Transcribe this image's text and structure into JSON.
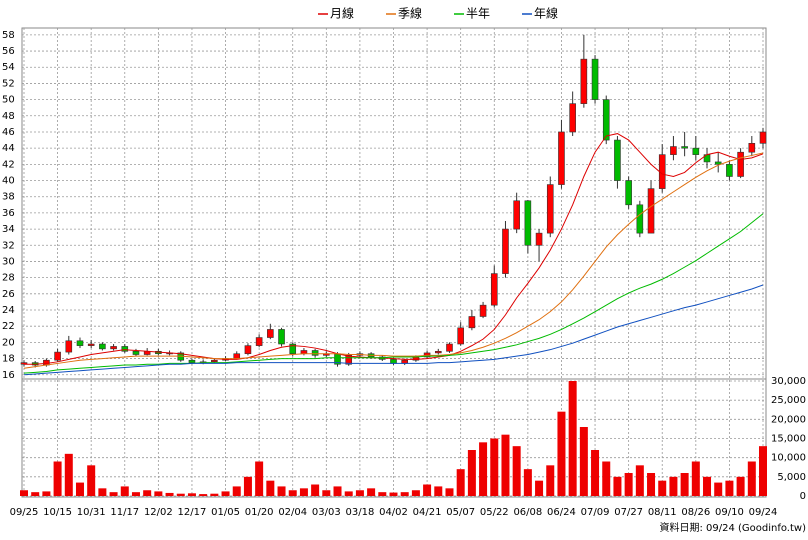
{
  "chart_data": {
    "type": "candlestick",
    "source": "資料日期: 09/24 (Goodinfo.tw)",
    "categories": [
      "09/25",
      null,
      null,
      "10/15",
      null,
      null,
      "10/31",
      null,
      null,
      "11/17",
      null,
      null,
      "12/02",
      null,
      null,
      "12/17",
      null,
      null,
      "01/05",
      null,
      null,
      "01/20",
      null,
      null,
      "02/04",
      null,
      null,
      "03/03",
      null,
      null,
      "03/18",
      null,
      null,
      "04/02",
      null,
      null,
      "04/21",
      null,
      null,
      "05/07",
      null,
      null,
      "05/22",
      null,
      null,
      "06/08",
      null,
      null,
      "06/24",
      null,
      null,
      "07/09",
      null,
      null,
      "07/27",
      null,
      null,
      "08/11",
      null,
      null,
      "08/26",
      null,
      null,
      "09/10",
      null,
      null,
      "09/24"
    ],
    "open": [
      17.3,
      17.5,
      17.2,
      17.8,
      18.8,
      20.2,
      19.6,
      19.8,
      19.2,
      19.5,
      18.9,
      18.5,
      18.9,
      18.6,
      18.7,
      17.8,
      17.5,
      17.6,
      17.8,
      18.0,
      18.6,
      19.6,
      20.6,
      21.6,
      19.8,
      18.6,
      19.0,
      18.4,
      18.6,
      17.3,
      18.4,
      18.6,
      18.2,
      17.9,
      17.4,
      17.8,
      18.2,
      18.7,
      18.9,
      19.8,
      21.8,
      23.2,
      24.6,
      28.5,
      34.0,
      37.5,
      32.0,
      33.5,
      39.5,
      46.0,
      49.5,
      55.0,
      50.0,
      45.0,
      40.0,
      37.0,
      33.5,
      39.0,
      43.2,
      44.2,
      44.0,
      43.2,
      42.3,
      42.0,
      40.5,
      43.5,
      44.6
    ],
    "high": [
      17.8,
      17.7,
      18.0,
      19.2,
      20.8,
      20.6,
      20.3,
      20.0,
      19.8,
      19.8,
      19.2,
      19.3,
      19.2,
      19.0,
      18.9,
      18.0,
      17.9,
      18.0,
      18.3,
      18.9,
      19.9,
      21.0,
      22.3,
      21.8,
      20.0,
      19.3,
      19.2,
      18.9,
      18.8,
      18.7,
      18.9,
      18.8,
      18.4,
      18.1,
      18.0,
      18.4,
      19.0,
      19.2,
      20.0,
      22.5,
      24.0,
      25.0,
      29.5,
      35.0,
      38.5,
      37.6,
      34.0,
      40.5,
      47.5,
      51.0,
      58.0,
      55.5,
      50.5,
      45.5,
      40.5,
      37.5,
      40.0,
      44.5,
      45.5,
      46.0,
      45.5,
      44.0,
      43.5,
      42.5,
      44.0,
      45.5,
      46.5
    ],
    "low": [
      17.0,
      16.9,
      17.0,
      17.6,
      18.5,
      19.3,
      19.3,
      19.0,
      19.0,
      18.7,
      18.3,
      18.4,
      18.4,
      18.4,
      17.6,
      17.3,
      17.3,
      17.4,
      17.7,
      17.9,
      18.4,
      19.4,
      20.4,
      19.5,
      18.3,
      18.4,
      18.1,
      18.2,
      17.0,
      17.1,
      18.2,
      18.0,
      17.7,
      17.2,
      17.2,
      17.6,
      18.0,
      18.5,
      18.7,
      19.6,
      21.5,
      23.0,
      24.3,
      28.0,
      33.5,
      31.0,
      30.0,
      33.0,
      39.0,
      45.5,
      49.0,
      49.5,
      44.5,
      39.0,
      36.5,
      33.0,
      33.5,
      38.5,
      42.5,
      43.0,
      42.5,
      41.5,
      41.0,
      40.0,
      40.3,
      43.0,
      44.0
    ],
    "close": [
      17.5,
      17.2,
      17.8,
      18.8,
      20.2,
      19.6,
      19.8,
      19.2,
      19.5,
      18.9,
      18.5,
      18.9,
      18.6,
      18.7,
      17.8,
      17.5,
      17.6,
      17.8,
      18.0,
      18.6,
      19.6,
      20.6,
      21.6,
      19.8,
      18.6,
      19.0,
      18.4,
      18.6,
      17.3,
      18.4,
      18.6,
      18.2,
      17.9,
      17.4,
      17.8,
      18.2,
      18.7,
      18.9,
      19.8,
      21.8,
      23.2,
      24.6,
      28.5,
      34.0,
      37.5,
      32.0,
      33.5,
      39.5,
      46.0,
      49.5,
      55.0,
      50.0,
      45.0,
      40.0,
      37.0,
      33.5,
      39.0,
      43.2,
      44.2,
      44.0,
      43.2,
      42.3,
      42.0,
      40.5,
      43.5,
      44.6,
      46.0
    ],
    "up_color": "#ff0000",
    "down_color": "#00bb00",
    "series": [
      {
        "name": "月線",
        "color": "#dd0000",
        "values": [
          17.3,
          17.3,
          17.4,
          17.6,
          17.9,
          18.2,
          18.5,
          18.7,
          18.9,
          19.1,
          19.0,
          18.9,
          18.8,
          18.7,
          18.6,
          18.4,
          18.2,
          18.0,
          17.9,
          17.9,
          18.1,
          18.5,
          19.0,
          19.4,
          19.6,
          19.5,
          19.3,
          19.0,
          18.6,
          18.3,
          18.2,
          18.1,
          18.1,
          18.0,
          17.9,
          17.9,
          18.0,
          18.2,
          18.4,
          18.9,
          19.6,
          20.4,
          21.6,
          23.4,
          25.5,
          27.3,
          29.2,
          31.4,
          34.0,
          37.0,
          40.5,
          43.5,
          45.5,
          45.8,
          45.0,
          43.5,
          42.0,
          40.8,
          40.5,
          41.0,
          42.2,
          43.2,
          43.5,
          43.0,
          42.6,
          42.8,
          43.3
        ]
      },
      {
        "name": "季線",
        "color": "#e07010",
        "values": [
          16.8,
          17.0,
          17.2,
          17.4,
          17.6,
          17.8,
          17.9,
          18.0,
          18.1,
          18.2,
          18.3,
          18.3,
          18.3,
          18.3,
          18.3,
          18.2,
          18.1,
          18.0,
          18.0,
          18.0,
          18.1,
          18.2,
          18.3,
          18.4,
          18.5,
          18.6,
          18.6,
          18.6,
          18.6,
          18.5,
          18.5,
          18.4,
          18.4,
          18.3,
          18.3,
          18.3,
          18.4,
          18.4,
          18.5,
          18.7,
          19.0,
          19.4,
          19.9,
          20.5,
          21.2,
          22.0,
          22.8,
          23.8,
          25.0,
          26.5,
          28.2,
          30.0,
          31.8,
          33.3,
          34.6,
          35.8,
          36.8,
          37.7,
          38.6,
          39.5,
          40.4,
          41.2,
          41.9,
          42.4,
          42.8,
          43.1,
          43.4
        ]
      },
      {
        "name": "半年",
        "color": "#00bb00",
        "values": [
          16.2,
          16.3,
          16.4,
          16.6,
          16.7,
          16.8,
          16.9,
          17.0,
          17.1,
          17.2,
          17.2,
          17.3,
          17.3,
          17.4,
          17.4,
          17.4,
          17.5,
          17.5,
          17.5,
          17.6,
          17.7,
          17.8,
          17.9,
          18.0,
          18.0,
          18.0,
          18.0,
          18.1,
          18.1,
          18.1,
          18.1,
          18.1,
          18.1,
          18.2,
          18.2,
          18.2,
          18.3,
          18.3,
          18.4,
          18.5,
          18.7,
          18.9,
          19.1,
          19.4,
          19.7,
          20.1,
          20.5,
          21.0,
          21.6,
          22.3,
          23.0,
          23.8,
          24.6,
          25.4,
          26.1,
          26.7,
          27.2,
          27.8,
          28.5,
          29.3,
          30.1,
          31.0,
          31.9,
          32.8,
          33.7,
          34.8,
          35.9
        ]
      },
      {
        "name": "年線",
        "color": "#1050c0",
        "values": [
          16.0,
          16.1,
          16.2,
          16.3,
          16.4,
          16.5,
          16.6,
          16.7,
          16.8,
          16.9,
          17.0,
          17.1,
          17.2,
          17.3,
          17.3,
          17.4,
          17.4,
          17.4,
          17.4,
          17.5,
          17.5,
          17.5,
          17.5,
          17.5,
          17.5,
          17.5,
          17.5,
          17.5,
          17.5,
          17.4,
          17.4,
          17.4,
          17.4,
          17.4,
          17.4,
          17.4,
          17.4,
          17.5,
          17.5,
          17.6,
          17.7,
          17.8,
          17.9,
          18.1,
          18.3,
          18.5,
          18.8,
          19.1,
          19.5,
          19.9,
          20.4,
          20.9,
          21.4,
          21.9,
          22.3,
          22.7,
          23.1,
          23.5,
          23.9,
          24.3,
          24.6,
          25.0,
          25.4,
          25.8,
          26.2,
          26.6,
          27.1
        ]
      }
    ],
    "ylim": [
      15.6,
      58.6
    ],
    "yticks": [
      16,
      18,
      20,
      22,
      24,
      26,
      28,
      30,
      32,
      34,
      36,
      38,
      40,
      42,
      44,
      46,
      48,
      50,
      52,
      54,
      56,
      58
    ],
    "grid": true,
    "volume": {
      "color": "#ee0000",
      "values": [
        1500,
        1000,
        1200,
        9000,
        11000,
        3500,
        8000,
        2000,
        1000,
        2500,
        1000,
        1500,
        1200,
        800,
        600,
        700,
        500,
        600,
        1200,
        2500,
        5000,
        9000,
        4000,
        2500,
        1500,
        2000,
        3000,
        1500,
        2500,
        1200,
        1500,
        2000,
        1000,
        900,
        1000,
        1500,
        3000,
        2500,
        2000,
        7000,
        12000,
        14000,
        15000,
        16000,
        13000,
        7000,
        4000,
        8000,
        22000,
        30000,
        18000,
        12000,
        9000,
        5000,
        6000,
        8000,
        6000,
        4000,
        5000,
        6000,
        9000,
        5000,
        3500,
        4000,
        5000,
        9000,
        13000
      ],
      "ylim": [
        0,
        30000
      ],
      "yticks": [
        0,
        {
          "value": 5000,
          "label": "5,000"
        },
        {
          "value": 10000,
          "label": "10,000"
        },
        {
          "value": 15000,
          "label": "15,000"
        },
        {
          "value": 20000,
          "label": "20,000"
        },
        {
          "value": 25000,
          "label": "25,000"
        },
        {
          "value": 30000,
          "label": "30,000"
        }
      ]
    }
  }
}
